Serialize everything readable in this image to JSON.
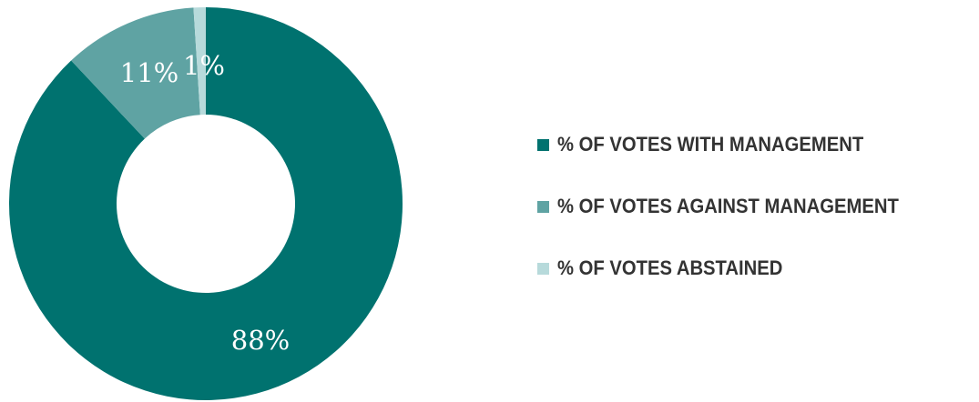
{
  "chart_data": {
    "type": "pie",
    "categories": [
      "% OF VOTES WITH MANAGEMENT",
      "% OF VOTES AGAINST MANAGEMENT",
      "% OF VOTES ABSTAINED"
    ],
    "values": [
      88,
      11,
      1
    ],
    "data_labels": [
      "88%",
      "11%",
      "1%"
    ],
    "colors": [
      "#00726f",
      "#5fa3a3",
      "#b7dadb"
    ],
    "donut": true,
    "legend": "right",
    "title": ""
  },
  "legend": {
    "items": [
      {
        "label": "% OF VOTES WITH MANAGEMENT",
        "color": "#00726f"
      },
      {
        "label": "% OF VOTES AGAINST MANAGEMENT",
        "color": "#5fa3a3"
      },
      {
        "label": "% OF VOTES ABSTAINED",
        "color": "#b7dadb"
      }
    ]
  }
}
